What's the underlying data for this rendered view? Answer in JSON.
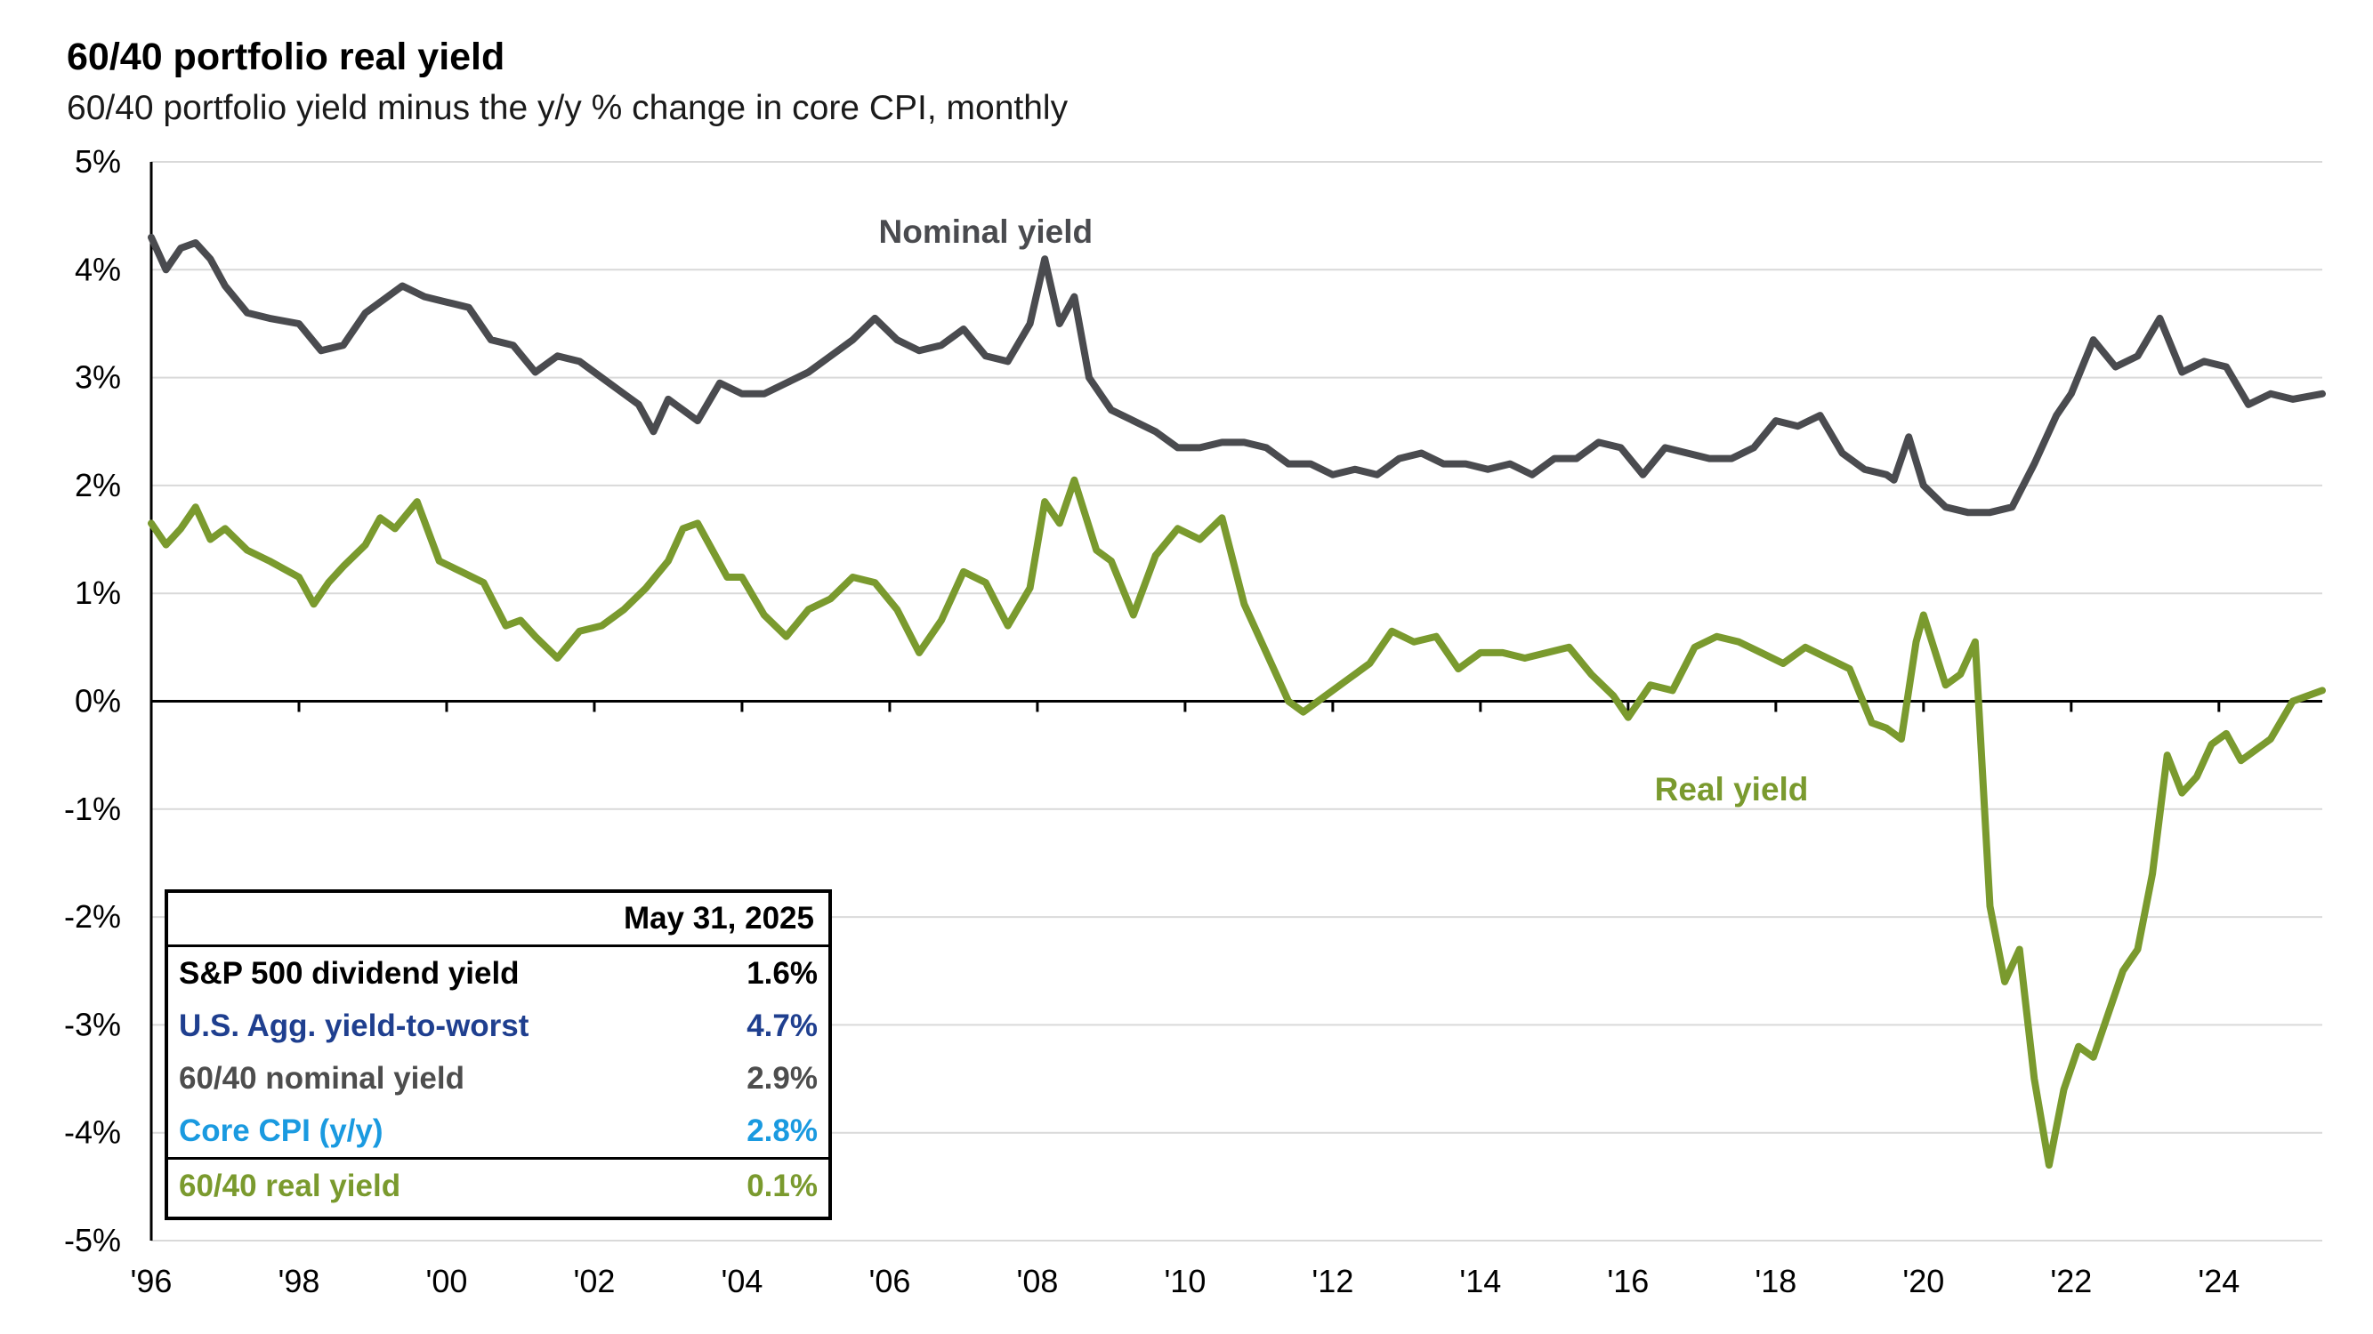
{
  "header": {
    "title": "60/40 portfolio real yield",
    "subtitle": "60/40 portfolio yield minus the y/y % change in core CPI, monthly"
  },
  "summary_table": {
    "date": "May 31, 2025",
    "rows": [
      {
        "label": "S&P 500 dividend yield",
        "value": "1.6%",
        "color": "#000000"
      },
      {
        "label": "U.S. Agg. yield-to-worst",
        "value": "4.7%",
        "color": "#1f3f8f"
      },
      {
        "label": "60/40 nominal yield",
        "value": "2.9%",
        "color": "#4d4d4d"
      },
      {
        "label": "Core CPI (y/y)",
        "value": "2.8%",
        "color": "#1a9ae0"
      },
      {
        "label": "60/40 real yield",
        "value": "0.1%",
        "color": "#7a9a2e"
      }
    ]
  },
  "chart_data": {
    "type": "line",
    "title": "60/40 portfolio real yield",
    "subtitle": "60/40 portfolio yield minus the y/y % change in core CPI, monthly",
    "xlabel": "",
    "ylabel": "",
    "xlim": [
      1996,
      2025.4
    ],
    "ylim": [
      -5,
      5
    ],
    "y_ticks": [
      -5,
      -4,
      -3,
      -2,
      -1,
      0,
      1,
      2,
      3,
      4,
      5
    ],
    "y_tick_labels": [
      "-5%",
      "-4%",
      "-3%",
      "-2%",
      "-1%",
      "0%",
      "1%",
      "2%",
      "3%",
      "4%",
      "5%"
    ],
    "x_ticks": [
      1996,
      1998,
      2000,
      2002,
      2004,
      2006,
      2008,
      2010,
      2012,
      2014,
      2016,
      2018,
      2020,
      2022,
      2024
    ],
    "x_tick_labels": [
      "'96",
      "'98",
      "'00",
      "'02",
      "'04",
      "'06",
      "'08",
      "'10",
      "'12",
      "'14",
      "'16",
      "'18",
      "'20",
      "'22",
      "'24"
    ],
    "grid": true,
    "legend": "inline labels",
    "series": [
      {
        "name": "Nominal yield",
        "color": "#4a4b4f",
        "label_text": "Nominal yield",
        "x": [
          1996.0,
          1996.2,
          1996.4,
          1996.6,
          1996.8,
          1997.0,
          1997.3,
          1997.6,
          1998.0,
          1998.3,
          1998.6,
          1998.9,
          1999.1,
          1999.4,
          1999.7,
          2000.0,
          2000.3,
          2000.6,
          2000.9,
          2001.2,
          2001.5,
          2001.8,
          2002.1,
          2002.4,
          2002.6,
          2002.8,
          2003.0,
          2003.2,
          2003.4,
          2003.7,
          2004.0,
          2004.3,
          2004.6,
          2004.9,
          2005.2,
          2005.5,
          2005.8,
          2006.1,
          2006.4,
          2006.7,
          2007.0,
          2007.3,
          2007.6,
          2007.9,
          2008.1,
          2008.3,
          2008.5,
          2008.7,
          2009.0,
          2009.3,
          2009.6,
          2009.9,
          2010.2,
          2010.5,
          2010.8,
          2011.1,
          2011.4,
          2011.7,
          2012.0,
          2012.3,
          2012.6,
          2012.9,
          2013.2,
          2013.5,
          2013.8,
          2014.1,
          2014.4,
          2014.7,
          2015.0,
          2015.3,
          2015.6,
          2015.9,
          2016.2,
          2016.5,
          2016.8,
          2017.1,
          2017.4,
          2017.7,
          2018.0,
          2018.3,
          2018.6,
          2018.9,
          2019.2,
          2019.5,
          2019.6,
          2019.8,
          2020.0,
          2020.3,
          2020.6,
          2020.9,
          2021.2,
          2021.5,
          2021.8,
          2022.0,
          2022.3,
          2022.6,
          2022.9,
          2023.2,
          2023.5,
          2023.8,
          2024.1,
          2024.4,
          2024.7,
          2025.0,
          2025.4
        ],
        "y": [
          4.3,
          4.0,
          4.2,
          4.25,
          4.1,
          3.85,
          3.6,
          3.55,
          3.5,
          3.25,
          3.3,
          3.6,
          3.7,
          3.85,
          3.75,
          3.7,
          3.65,
          3.35,
          3.3,
          3.05,
          3.2,
          3.15,
          3.0,
          2.85,
          2.75,
          2.5,
          2.8,
          2.7,
          2.6,
          2.95,
          2.85,
          2.85,
          2.95,
          3.05,
          3.2,
          3.35,
          3.55,
          3.35,
          3.25,
          3.3,
          3.45,
          3.2,
          3.15,
          3.5,
          4.1,
          3.5,
          3.75,
          3.0,
          2.7,
          2.6,
          2.5,
          2.35,
          2.35,
          2.4,
          2.4,
          2.35,
          2.2,
          2.2,
          2.1,
          2.15,
          2.1,
          2.25,
          2.3,
          2.2,
          2.2,
          2.15,
          2.2,
          2.1,
          2.25,
          2.25,
          2.4,
          2.35,
          2.1,
          2.35,
          2.3,
          2.25,
          2.25,
          2.35,
          2.6,
          2.55,
          2.65,
          2.3,
          2.15,
          2.1,
          2.05,
          2.45,
          2.0,
          1.8,
          1.75,
          1.75,
          1.8,
          2.2,
          2.65,
          2.85,
          3.35,
          3.1,
          3.2,
          3.55,
          3.05,
          3.15,
          3.1,
          2.75,
          2.85,
          2.8,
          2.85
        ]
      },
      {
        "name": "Real yield",
        "color": "#7a9a2e",
        "label_text": "Real yield",
        "x": [
          1996.0,
          1996.2,
          1996.4,
          1996.6,
          1996.8,
          1997.0,
          1997.3,
          1997.6,
          1998.0,
          1998.2,
          1998.4,
          1998.6,
          1998.9,
          1999.1,
          1999.3,
          1999.6,
          1999.9,
          2000.2,
          2000.5,
          2000.8,
          2001.0,
          2001.2,
          2001.5,
          2001.8,
          2002.1,
          2002.4,
          2002.7,
          2003.0,
          2003.2,
          2003.4,
          2003.6,
          2003.8,
          2004.0,
          2004.3,
          2004.6,
          2004.9,
          2005.2,
          2005.5,
          2005.8,
          2006.1,
          2006.4,
          2006.7,
          2007.0,
          2007.3,
          2007.6,
          2007.9,
          2008.1,
          2008.3,
          2008.5,
          2008.8,
          2009.0,
          2009.3,
          2009.6,
          2009.9,
          2010.2,
          2010.5,
          2010.8,
          2011.1,
          2011.4,
          2011.6,
          2011.9,
          2012.2,
          2012.5,
          2012.8,
          2013.1,
          2013.4,
          2013.7,
          2014.0,
          2014.3,
          2014.6,
          2014.9,
          2015.2,
          2015.5,
          2015.8,
          2016.0,
          2016.3,
          2016.6,
          2016.9,
          2017.2,
          2017.5,
          2017.8,
          2018.1,
          2018.4,
          2018.7,
          2019.0,
          2019.3,
          2019.5,
          2019.7,
          2019.9,
          2020.0,
          2020.3,
          2020.5,
          2020.7,
          2020.9,
          2021.1,
          2021.3,
          2021.5,
          2021.7,
          2021.9,
          2022.1,
          2022.3,
          2022.5,
          2022.7,
          2022.9,
          2023.1,
          2023.3,
          2023.5,
          2023.7,
          2023.9,
          2024.1,
          2024.3,
          2024.5,
          2024.7,
          2025.0,
          2025.4
        ],
        "y": [
          1.65,
          1.45,
          1.6,
          1.8,
          1.5,
          1.6,
          1.4,
          1.3,
          1.15,
          0.9,
          1.1,
          1.25,
          1.45,
          1.7,
          1.6,
          1.85,
          1.3,
          1.2,
          1.1,
          0.7,
          0.75,
          0.6,
          0.4,
          0.65,
          0.7,
          0.85,
          1.05,
          1.3,
          1.6,
          1.65,
          1.4,
          1.15,
          1.15,
          0.8,
          0.6,
          0.85,
          0.95,
          1.15,
          1.1,
          0.85,
          0.45,
          0.75,
          1.2,
          1.1,
          0.7,
          1.05,
          1.85,
          1.65,
          2.05,
          1.4,
          1.3,
          0.8,
          1.35,
          1.6,
          1.5,
          1.7,
          0.9,
          0.45,
          0.0,
          -0.1,
          0.05,
          0.2,
          0.35,
          0.65,
          0.55,
          0.6,
          0.3,
          0.45,
          0.45,
          0.4,
          0.45,
          0.5,
          0.25,
          0.05,
          -0.15,
          0.15,
          0.1,
          0.5,
          0.6,
          0.55,
          0.45,
          0.35,
          0.5,
          0.4,
          0.3,
          -0.2,
          -0.25,
          -0.35,
          0.55,
          0.8,
          0.15,
          0.25,
          0.55,
          -1.9,
          -2.6,
          -2.3,
          -3.5,
          -4.3,
          -3.6,
          -3.2,
          -3.3,
          -2.9,
          -2.5,
          -2.3,
          -1.6,
          -0.5,
          -0.85,
          -0.7,
          -0.4,
          -0.3,
          -0.55,
          -0.45,
          -0.35,
          0.0,
          0.1
        ]
      }
    ]
  }
}
